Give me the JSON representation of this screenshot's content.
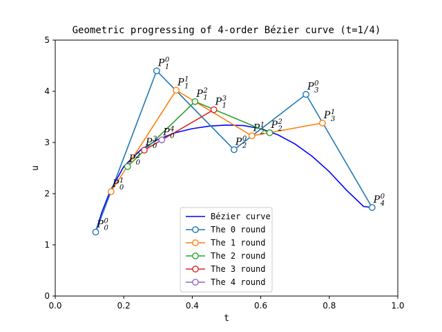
{
  "chart_data": {
    "type": "line",
    "title": "Geometric progressing of 4-order Bézier curve (t=1/4)",
    "xlabel": "t",
    "ylabel": "u",
    "xlim": [
      0.0,
      1.0
    ],
    "ylim": [
      0,
      5
    ],
    "xticks": [
      "0.0",
      "0.2",
      "0.4",
      "0.6",
      "0.8",
      "1.0"
    ],
    "yticks": [
      "0",
      "1",
      "2",
      "3",
      "4",
      "5"
    ],
    "grid": false,
    "legend_position": "lower-center",
    "curve": {
      "name": "Bézier curve",
      "color": "#0000ff",
      "x": [
        0.118,
        0.135,
        0.16,
        0.2,
        0.25,
        0.3,
        0.35,
        0.4,
        0.45,
        0.5,
        0.55,
        0.6,
        0.65,
        0.7,
        0.75,
        0.8,
        0.85,
        0.9,
        0.925
      ],
      "y": [
        1.25,
        1.62,
        2.05,
        2.53,
        2.86,
        3.06,
        3.19,
        3.27,
        3.32,
        3.34,
        3.33,
        3.27,
        3.15,
        2.97,
        2.73,
        2.43,
        2.07,
        1.75,
        1.73
      ]
    },
    "series": [
      {
        "name": "The 0 round",
        "color": "#1f77b4",
        "points": [
          {
            "x": 0.118,
            "y": 1.25,
            "base": "P",
            "sup": "0",
            "sub": "0"
          },
          {
            "x": 0.296,
            "y": 4.4,
            "base": "P",
            "sup": "0",
            "sub": "1"
          },
          {
            "x": 0.522,
            "y": 2.86,
            "base": "P",
            "sup": "0",
            "sub": "2"
          },
          {
            "x": 0.732,
            "y": 3.94,
            "base": "P",
            "sup": "0",
            "sub": "3"
          },
          {
            "x": 0.925,
            "y": 1.73,
            "base": "P",
            "sup": "0",
            "sub": "4"
          }
        ]
      },
      {
        "name": "The 1 round",
        "color": "#ff7f0e",
        "points": [
          {
            "x": 0.163,
            "y": 2.04,
            "base": "P",
            "sup": "1",
            "sub": "0"
          },
          {
            "x": 0.353,
            "y": 4.02,
            "base": "P",
            "sup": "1",
            "sub": "1"
          },
          {
            "x": 0.574,
            "y": 3.13,
            "base": "P",
            "sup": "1",
            "sub": "2"
          },
          {
            "x": 0.78,
            "y": 3.38,
            "base": "P",
            "sup": "1",
            "sub": "3"
          }
        ]
      },
      {
        "name": "The 2 round",
        "color": "#2ca02c",
        "points": [
          {
            "x": 0.211,
            "y": 2.53,
            "base": "P",
            "sup": "2",
            "sub": "0"
          },
          {
            "x": 0.408,
            "y": 3.8,
            "base": "P",
            "sup": "2",
            "sub": "1"
          },
          {
            "x": 0.626,
            "y": 3.19,
            "base": "P",
            "sup": "2",
            "sub": "2"
          }
        ]
      },
      {
        "name": "The 3 round",
        "color": "#d62728",
        "points": [
          {
            "x": 0.26,
            "y": 2.85,
            "base": "P",
            "sup": "3",
            "sub": "0"
          },
          {
            "x": 0.463,
            "y": 3.64,
            "base": "P",
            "sup": "3",
            "sub": "1"
          }
        ]
      },
      {
        "name": "The 4 round",
        "color": "#9467bd",
        "points": [
          {
            "x": 0.311,
            "y": 3.05,
            "base": "P",
            "sup": "4",
            "sub": "0"
          }
        ]
      }
    ]
  }
}
